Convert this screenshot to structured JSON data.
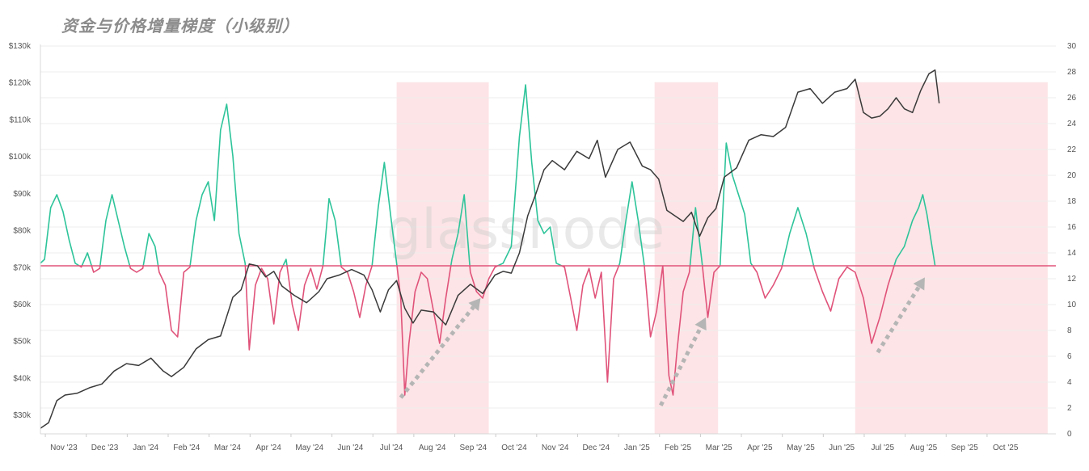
{
  "chart_data": {
    "type": "line",
    "title": "资金与价格增量梯度（小级别）",
    "watermark": "glassnode",
    "x_labels": [
      "Nov '23",
      "Dec '23",
      "Jan '24",
      "Feb '24",
      "Mar '24",
      "Apr '24",
      "May '24",
      "Jun '24",
      "Jul '24",
      "Aug '24",
      "Sep '24",
      "Oct '24",
      "Nov '24",
      "Dec '24",
      "Jan '25",
      "Feb '25",
      "Mar '25",
      "Apr '25",
      "May '25",
      "Jun '25",
      "Jul '25",
      "Aug '25",
      "Sep '25",
      "Oct '25"
    ],
    "y_left": {
      "ticks": [
        "$30k",
        "$40k",
        "$50k",
        "$60k",
        "$70k",
        "$80k",
        "$90k",
        "$100k",
        "$110k",
        "$120k",
        "$130k"
      ],
      "ylim": [
        25000,
        130000
      ]
    },
    "y_right": {
      "ticks": [
        "0",
        "2",
        "4",
        "6",
        "8",
        "10",
        "12",
        "14",
        "16",
        "18",
        "20",
        "22",
        "24",
        "26",
        "28",
        "30"
      ],
      "ylim": [
        0,
        30
      ]
    },
    "baseline": 13,
    "x_range": [
      0,
      24.8
    ],
    "colors": {
      "price": "#3a3a3a",
      "above": "#2ec49a",
      "below": "#e0537a",
      "baseline": "#e0537a",
      "highlight": "#fde4e6",
      "arrow": "#b5b5b5"
    },
    "highlight_regions": [
      [
        8.7,
        10.95
      ],
      [
        15.0,
        16.55
      ],
      [
        19.9,
        24.6
      ]
    ],
    "arrows": [
      {
        "from": [
          8.8,
          2.8
        ],
        "to": [
          10.75,
          10.5
        ]
      },
      {
        "from": [
          15.15,
          2.2
        ],
        "to": [
          16.25,
          9.0
        ]
      },
      {
        "from": [
          20.45,
          6.3
        ],
        "to": [
          21.6,
          12.1
        ]
      }
    ],
    "price_series": {
      "name": "price",
      "points": [
        [
          0,
          26500
        ],
        [
          0.2,
          28000
        ],
        [
          0.4,
          34000
        ],
        [
          0.6,
          35500
        ],
        [
          0.9,
          36000
        ],
        [
          1.2,
          37500
        ],
        [
          1.5,
          38500
        ],
        [
          1.8,
          42000
        ],
        [
          2.1,
          44000
        ],
        [
          2.4,
          43500
        ],
        [
          2.7,
          45500
        ],
        [
          3.0,
          42000
        ],
        [
          3.2,
          40500
        ],
        [
          3.5,
          43000
        ],
        [
          3.8,
          48000
        ],
        [
          4.1,
          50500
        ],
        [
          4.4,
          51500
        ],
        [
          4.7,
          62000
        ],
        [
          4.9,
          64000
        ],
        [
          5.1,
          71000
        ],
        [
          5.3,
          70500
        ],
        [
          5.5,
          67500
        ],
        [
          5.7,
          69000
        ],
        [
          5.9,
          65000
        ],
        [
          6.2,
          62500
        ],
        [
          6.5,
          60500
        ],
        [
          6.8,
          63500
        ],
        [
          7.0,
          67000
        ],
        [
          7.3,
          68000
        ],
        [
          7.6,
          69500
        ],
        [
          7.9,
          68000
        ],
        [
          8.1,
          64000
        ],
        [
          8.3,
          58000
        ],
        [
          8.5,
          64000
        ],
        [
          8.7,
          66500
        ],
        [
          8.9,
          59000
        ],
        [
          9.1,
          55000
        ],
        [
          9.3,
          58500
        ],
        [
          9.6,
          58000
        ],
        [
          9.9,
          54500
        ],
        [
          10.2,
          62500
        ],
        [
          10.5,
          65500
        ],
        [
          10.8,
          63000
        ],
        [
          11.1,
          68000
        ],
        [
          11.3,
          69000
        ],
        [
          11.5,
          68500
        ],
        [
          11.7,
          74000
        ],
        [
          11.9,
          84000
        ],
        [
          12.1,
          90000
        ],
        [
          12.3,
          96500
        ],
        [
          12.5,
          99000
        ],
        [
          12.8,
          96500
        ],
        [
          13.1,
          101500
        ],
        [
          13.4,
          99500
        ],
        [
          13.6,
          104500
        ],
        [
          13.8,
          94500
        ],
        [
          14.1,
          102000
        ],
        [
          14.4,
          104000
        ],
        [
          14.7,
          97500
        ],
        [
          14.9,
          96500
        ],
        [
          15.1,
          94000
        ],
        [
          15.3,
          85500
        ],
        [
          15.5,
          84000
        ],
        [
          15.7,
          82500
        ],
        [
          15.9,
          85000
        ],
        [
          16.1,
          78500
        ],
        [
          16.3,
          83500
        ],
        [
          16.5,
          86000
        ],
        [
          16.7,
          94500
        ],
        [
          17.0,
          97000
        ],
        [
          17.3,
          104500
        ],
        [
          17.6,
          106000
        ],
        [
          17.9,
          105500
        ],
        [
          18.2,
          108000
        ],
        [
          18.5,
          117500
        ],
        [
          18.8,
          118500
        ],
        [
          19.1,
          114500
        ],
        [
          19.4,
          117500
        ],
        [
          19.7,
          118500
        ],
        [
          19.9,
          121000
        ],
        [
          20.1,
          112000
        ],
        [
          20.3,
          110500
        ],
        [
          20.5,
          111000
        ],
        [
          20.7,
          113000
        ],
        [
          20.9,
          116000
        ],
        [
          21.1,
          113000
        ],
        [
          21.3,
          112000
        ],
        [
          21.5,
          118000
        ],
        [
          21.7,
          122500
        ],
        [
          21.85,
          123500
        ],
        [
          21.95,
          114500
        ]
      ]
    },
    "flow_series": {
      "name": "flow",
      "points": [
        [
          0,
          13.2
        ],
        [
          0.1,
          13.5
        ],
        [
          0.25,
          17.5
        ],
        [
          0.4,
          18.5
        ],
        [
          0.55,
          17.2
        ],
        [
          0.7,
          15.0
        ],
        [
          0.85,
          13.2
        ],
        [
          1.0,
          12.9
        ],
        [
          1.15,
          14.0
        ],
        [
          1.3,
          12.5
        ],
        [
          1.45,
          12.8
        ],
        [
          1.6,
          16.5
        ],
        [
          1.75,
          18.5
        ],
        [
          1.9,
          16.5
        ],
        [
          2.05,
          14.5
        ],
        [
          2.2,
          12.8
        ],
        [
          2.35,
          12.5
        ],
        [
          2.5,
          12.8
        ],
        [
          2.65,
          15.5
        ],
        [
          2.8,
          14.5
        ],
        [
          2.9,
          12.5
        ],
        [
          3.05,
          11.5
        ],
        [
          3.2,
          8.0
        ],
        [
          3.35,
          7.5
        ],
        [
          3.5,
          12.5
        ],
        [
          3.65,
          12.9
        ],
        [
          3.8,
          16.5
        ],
        [
          3.95,
          18.5
        ],
        [
          4.1,
          19.5
        ],
        [
          4.25,
          16.5
        ],
        [
          4.4,
          23.5
        ],
        [
          4.55,
          25.5
        ],
        [
          4.7,
          21.5
        ],
        [
          4.85,
          15.5
        ],
        [
          5.0,
          13.2
        ],
        [
          5.1,
          6.5
        ],
        [
          5.25,
          11.5
        ],
        [
          5.4,
          12.8
        ],
        [
          5.55,
          12.0
        ],
        [
          5.7,
          8.5
        ],
        [
          5.85,
          12.5
        ],
        [
          6.0,
          13.5
        ],
        [
          6.15,
          10.0
        ],
        [
          6.3,
          8.0
        ],
        [
          6.45,
          11.5
        ],
        [
          6.6,
          12.8
        ],
        [
          6.75,
          11.2
        ],
        [
          6.9,
          13.0
        ],
        [
          7.05,
          18.2
        ],
        [
          7.2,
          16.5
        ],
        [
          7.35,
          12.9
        ],
        [
          7.5,
          12.5
        ],
        [
          7.65,
          11.0
        ],
        [
          7.8,
          9.0
        ],
        [
          7.95,
          11.5
        ],
        [
          8.1,
          13.0
        ],
        [
          8.25,
          17.5
        ],
        [
          8.4,
          21.0
        ],
        [
          8.55,
          17.0
        ],
        [
          8.7,
          13.2
        ],
        [
          8.8,
          10.5
        ],
        [
          8.9,
          3.0
        ],
        [
          9.0,
          7.0
        ],
        [
          9.15,
          11.0
        ],
        [
          9.3,
          12.5
        ],
        [
          9.45,
          12.0
        ],
        [
          9.6,
          9.5
        ],
        [
          9.75,
          7.0
        ],
        [
          9.9,
          10.5
        ],
        [
          10.05,
          13.5
        ],
        [
          10.2,
          15.5
        ],
        [
          10.35,
          18.5
        ],
        [
          10.5,
          12.5
        ],
        [
          10.65,
          11.0
        ],
        [
          10.8,
          10.5
        ],
        [
          10.95,
          12.0
        ],
        [
          11.1,
          12.9
        ],
        [
          11.3,
          13.2
        ],
        [
          11.5,
          14.5
        ],
        [
          11.7,
          23.0
        ],
        [
          11.85,
          27.0
        ],
        [
          12.0,
          21.0
        ],
        [
          12.15,
          16.5
        ],
        [
          12.3,
          15.5
        ],
        [
          12.45,
          16.0
        ],
        [
          12.6,
          13.2
        ],
        [
          12.8,
          12.9
        ],
        [
          12.95,
          10.5
        ],
        [
          13.1,
          8.0
        ],
        [
          13.25,
          11.5
        ],
        [
          13.4,
          12.8
        ],
        [
          13.55,
          10.5
        ],
        [
          13.7,
          12.5
        ],
        [
          13.85,
          4.0
        ],
        [
          14.0,
          12.0
        ],
        [
          14.15,
          13.2
        ],
        [
          14.3,
          16.5
        ],
        [
          14.45,
          19.5
        ],
        [
          14.6,
          16.5
        ],
        [
          14.75,
          13.0
        ],
        [
          14.9,
          7.5
        ],
        [
          15.05,
          9.5
        ],
        [
          15.2,
          13.0
        ],
        [
          15.35,
          4.5
        ],
        [
          15.45,
          3.0
        ],
        [
          15.55,
          6.5
        ],
        [
          15.7,
          11.0
        ],
        [
          15.85,
          12.5
        ],
        [
          16.0,
          17.5
        ],
        [
          16.15,
          13.5
        ],
        [
          16.3,
          9.0
        ],
        [
          16.45,
          12.5
        ],
        [
          16.6,
          13.0
        ],
        [
          16.75,
          22.5
        ],
        [
          16.9,
          20.0
        ],
        [
          17.05,
          18.5
        ],
        [
          17.2,
          17.0
        ],
        [
          17.35,
          13.2
        ],
        [
          17.5,
          12.5
        ],
        [
          17.7,
          10.5
        ],
        [
          17.9,
          11.5
        ],
        [
          18.1,
          12.8
        ],
        [
          18.3,
          15.5
        ],
        [
          18.5,
          17.5
        ],
        [
          18.7,
          15.5
        ],
        [
          18.9,
          12.8
        ],
        [
          19.1,
          11.0
        ],
        [
          19.3,
          9.5
        ],
        [
          19.5,
          12.0
        ],
        [
          19.7,
          12.9
        ],
        [
          19.9,
          12.5
        ],
        [
          20.1,
          10.5
        ],
        [
          20.3,
          7.0
        ],
        [
          20.5,
          9.0
        ],
        [
          20.7,
          11.5
        ],
        [
          20.9,
          13.5
        ],
        [
          21.1,
          14.5
        ],
        [
          21.3,
          16.5
        ],
        [
          21.45,
          17.5
        ],
        [
          21.55,
          18.5
        ],
        [
          21.65,
          17.0
        ],
        [
          21.75,
          15.0
        ],
        [
          21.85,
          13.0
        ]
      ]
    }
  }
}
